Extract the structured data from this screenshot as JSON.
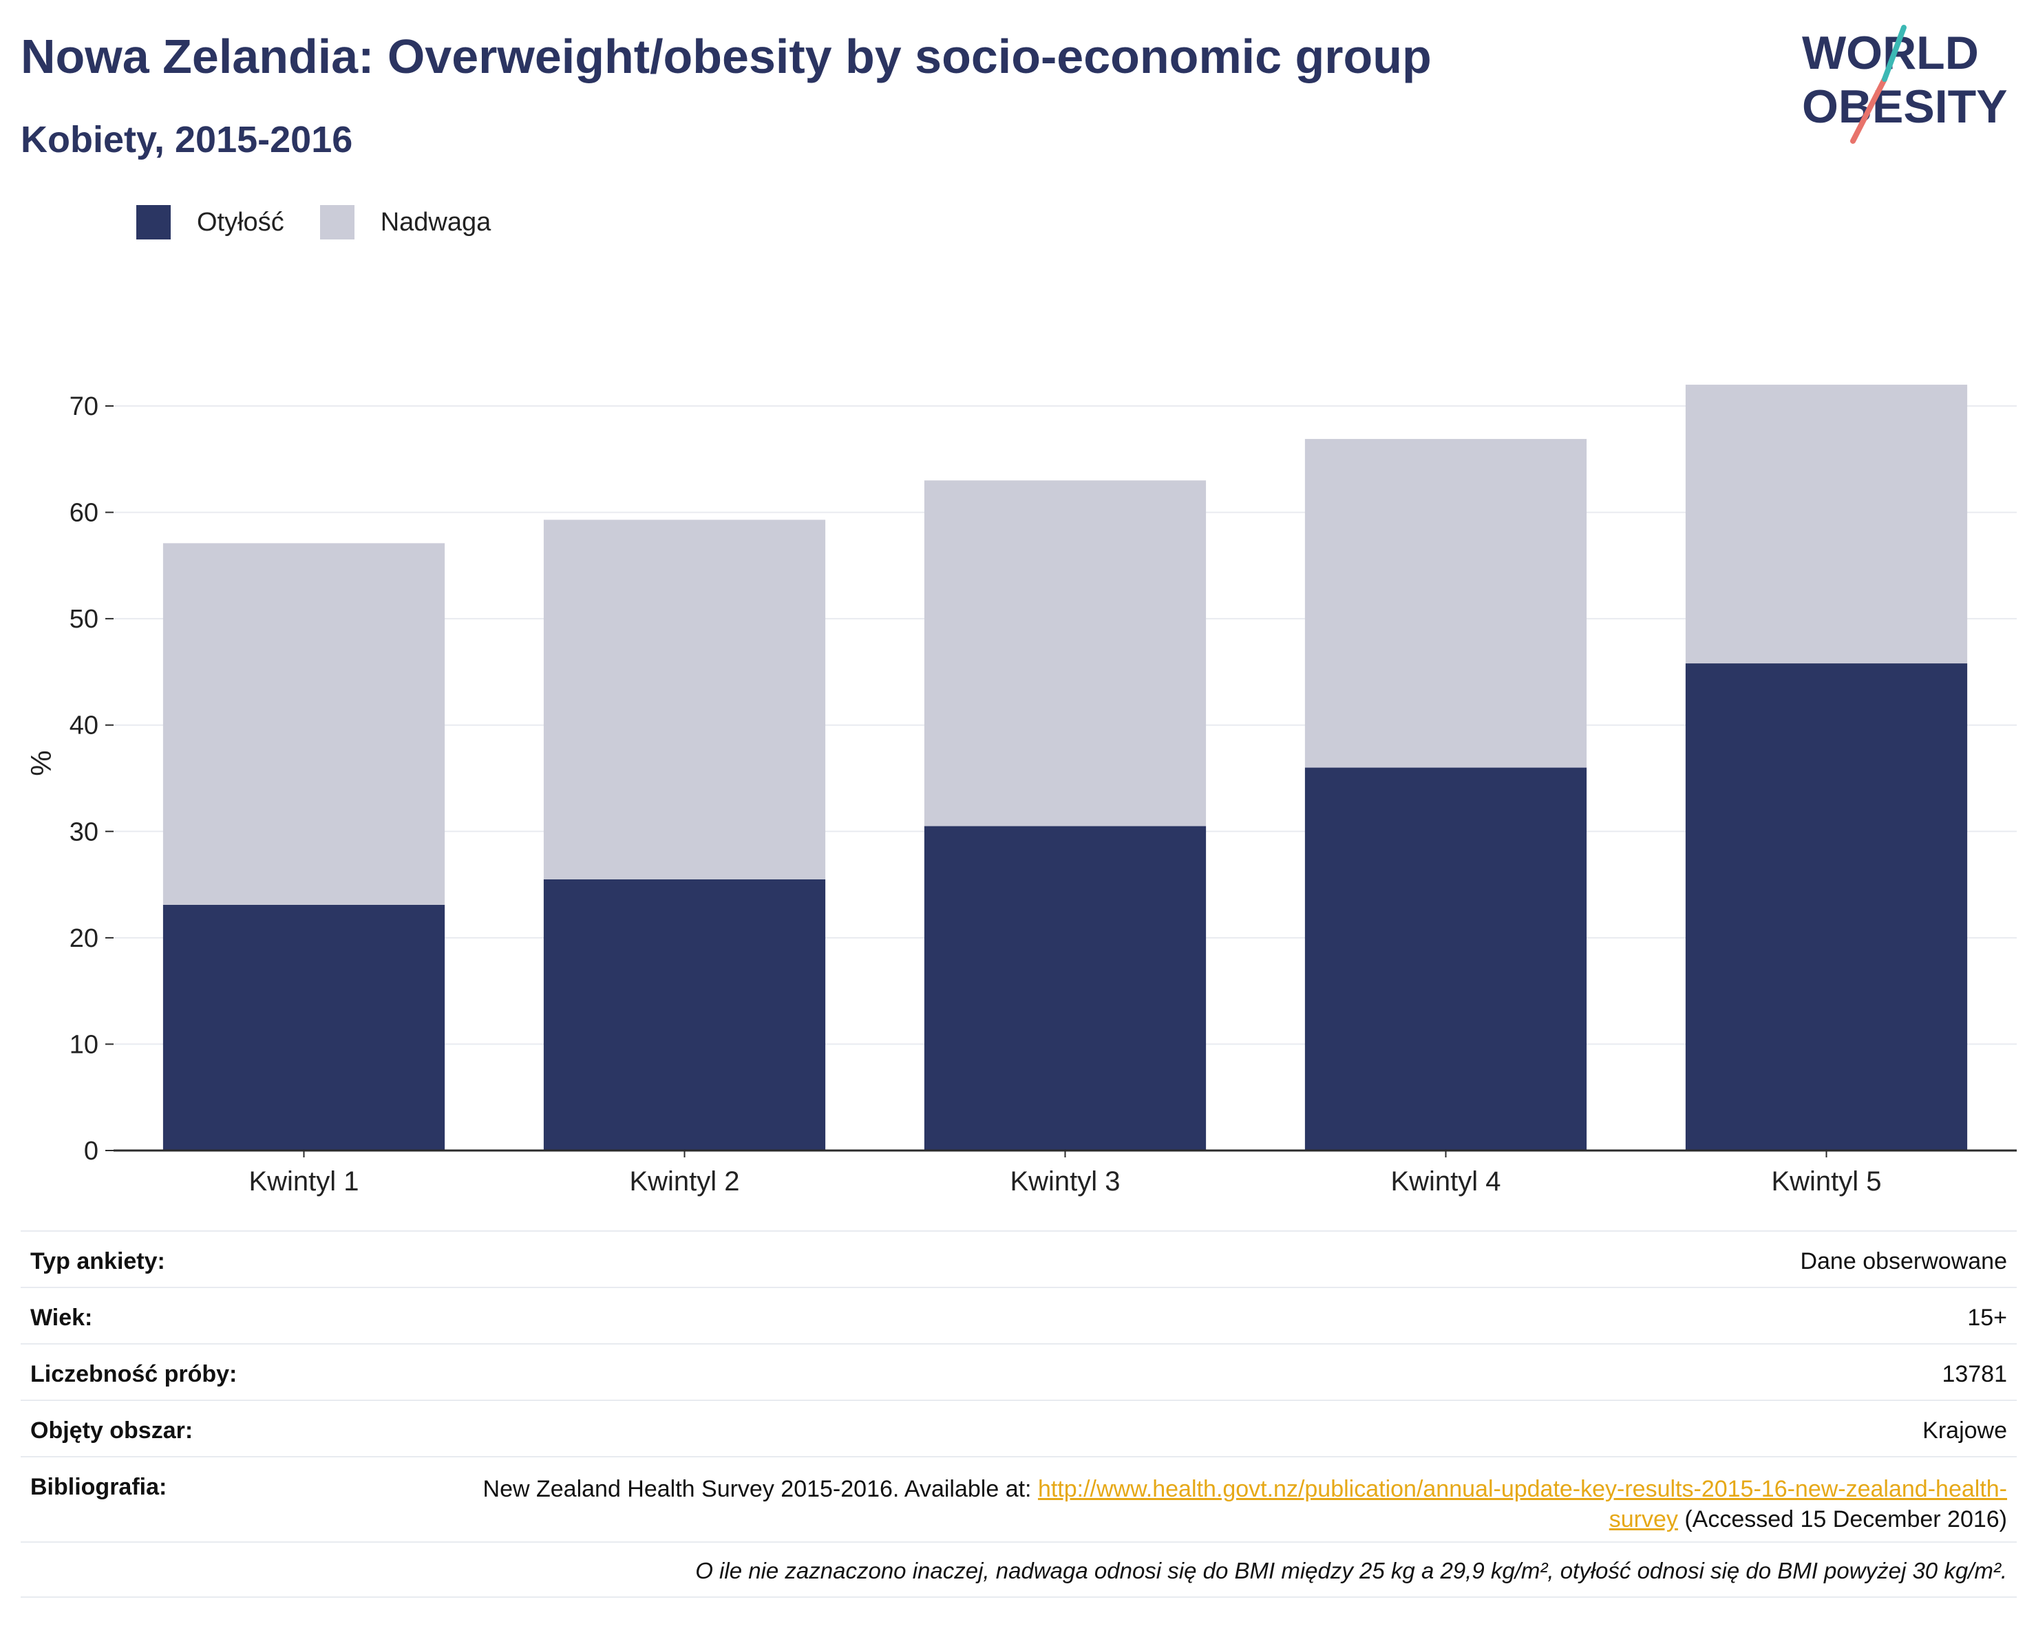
{
  "title": "Nowa Zelandia: Overweight/obesity by socio-economic group",
  "subtitle": "Kobiety, 2015-2016",
  "logo": {
    "line1": "WORLD",
    "line2": "OBESITY"
  },
  "chart_data": {
    "type": "bar",
    "stacked": true,
    "categories": [
      "Kwintyl 1",
      "Kwintyl 2",
      "Kwintyl 3",
      "Kwintyl 4",
      "Kwintyl 5"
    ],
    "series": [
      {
        "name": "Otyłość",
        "color": "#2b3663",
        "values": [
          23.1,
          25.5,
          30.5,
          36.0,
          45.8
        ]
      },
      {
        "name": "Nadwaga",
        "color": "#cbccd8",
        "values": [
          34.0,
          33.8,
          32.5,
          30.9,
          26.2
        ]
      }
    ],
    "ylabel": "%",
    "ylim": [
      0,
      70
    ],
    "yticks": [
      0,
      10,
      20,
      30,
      40,
      50,
      60,
      70
    ],
    "grid": true,
    "legend_position": "top-left"
  },
  "info": {
    "survey_type": {
      "label": "Typ ankiety:",
      "value": "Dane obserwowane"
    },
    "age": {
      "label": "Wiek:",
      "value": "15+"
    },
    "sample_size": {
      "label": "Liczebność próby:",
      "value": "13781"
    },
    "coverage": {
      "label": "Objęty obszar:",
      "value": "Krajowe"
    },
    "bibliography": {
      "label": "Bibliografia:",
      "prefix": "New Zealand Health Survey 2015-2016. Available at: ",
      "link": "http://www.health.govt.nz/publication/annual-update-key-results-2015-16-new-zealand-health-survey",
      "suffix": " (Accessed 15 December 2016)"
    },
    "note": "O ile nie zaznaczono inaczej, nadwaga odnosi się do BMI między 25 kg a 29,9 kg/m², otyłość odnosi się do BMI powyżej 30 kg/m²."
  }
}
